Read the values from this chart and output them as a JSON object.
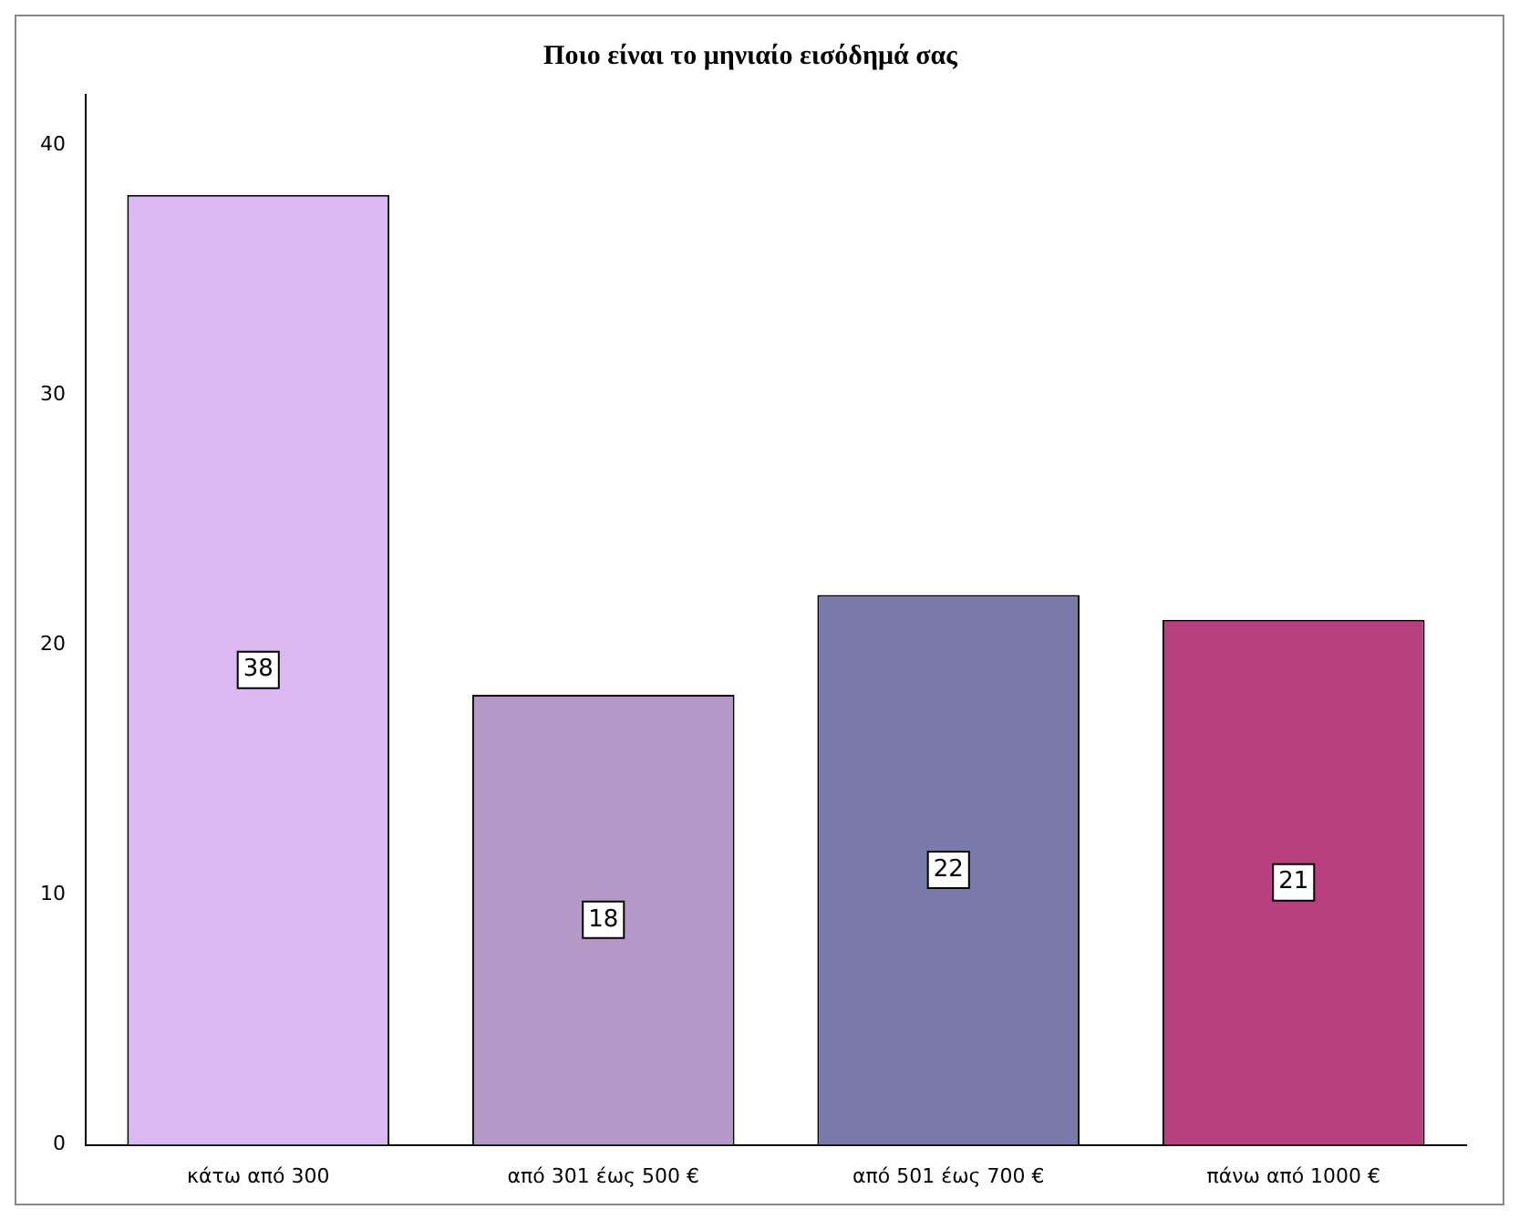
{
  "chart_data": {
    "type": "bar",
    "title": "Ποιο είναι το μηνιαίο εισόδημά σας",
    "categories": [
      "κάτω από 300",
      "από 301 έως 500 €",
      "από 501 έως 700 €",
      "πάνω από 1000 €"
    ],
    "values": [
      38,
      18,
      22,
      21
    ],
    "colors": [
      "#dcb8f0",
      "#b499c8",
      "#7a7aaa",
      "#b84080"
    ],
    "ylim": [
      0,
      42
    ],
    "yticks": [
      0,
      10,
      20,
      30,
      40
    ],
    "grid": false,
    "data_labels": true
  }
}
